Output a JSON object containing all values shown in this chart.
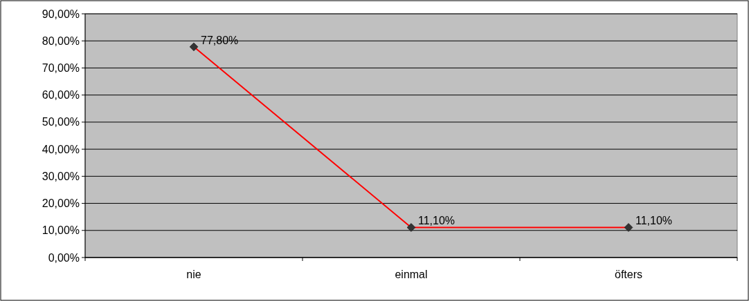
{
  "chart_data": {
    "type": "line",
    "categories": [
      "nie",
      "einmal",
      "öfters"
    ],
    "series": [
      {
        "color": "#ff0000",
        "values": [
          77.8,
          11.1,
          11.1
        ],
        "value_labels": [
          "77,80%",
          "11,10%",
          "11,10%"
        ]
      }
    ],
    "ylim": [
      0,
      90
    ],
    "yticks": [
      {
        "value": 0,
        "label": "0,00%"
      },
      {
        "value": 10,
        "label": "10,00%"
      },
      {
        "value": 20,
        "label": "20,00%"
      },
      {
        "value": 30,
        "label": "30,00%"
      },
      {
        "value": 40,
        "label": "40,00%"
      },
      {
        "value": 50,
        "label": "50,00%"
      },
      {
        "value": 60,
        "label": "60,00%"
      },
      {
        "value": 70,
        "label": "70,00%"
      },
      {
        "value": 80,
        "label": "80,00%"
      },
      {
        "value": 90,
        "label": "90,00%"
      }
    ],
    "grid": "y",
    "marker": "diamond",
    "line_style": "solid"
  }
}
